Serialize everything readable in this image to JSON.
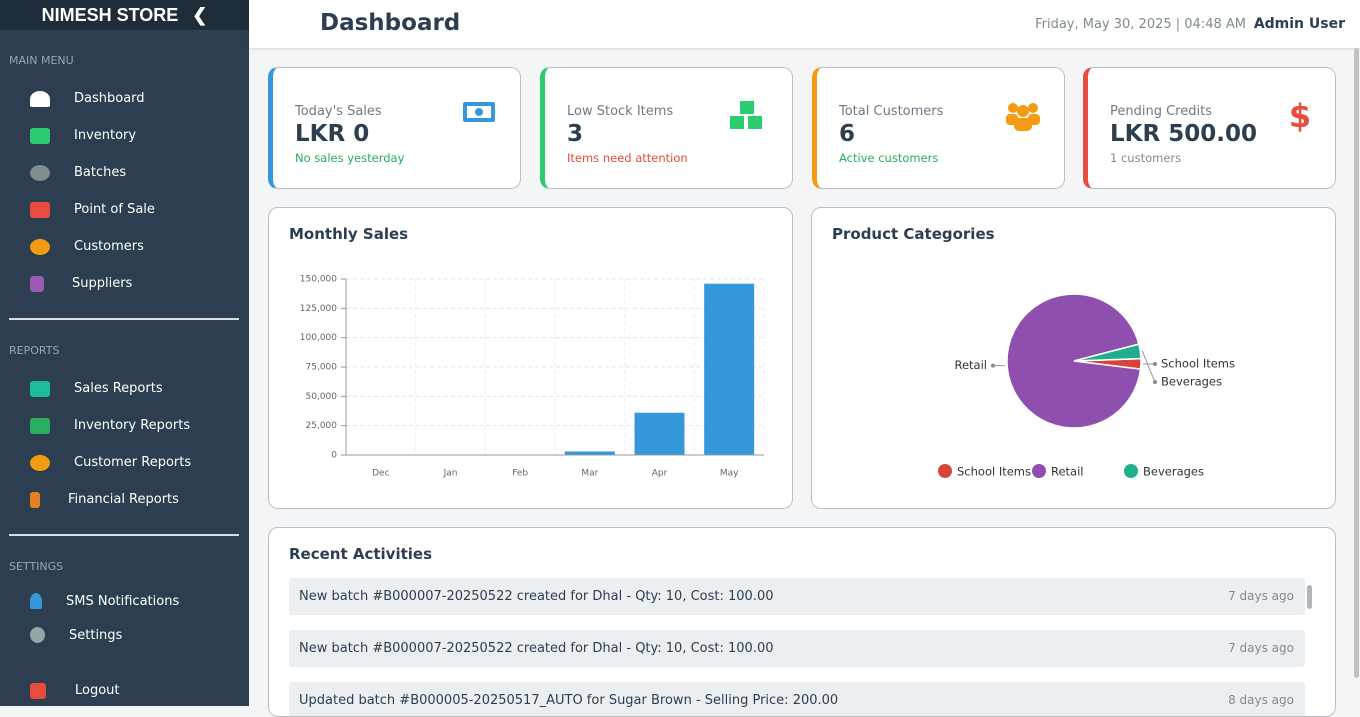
{
  "sidebar": {
    "brand": "NIMESH STORE",
    "sections": [
      {
        "title": "MAIN MENU",
        "items": [
          "Dashboard",
          "Inventory",
          "Batches",
          "Point of Sale",
          "Customers",
          "Suppliers"
        ]
      },
      {
        "title": "REPORTS",
        "items": [
          "Sales Reports",
          "Inventory Reports",
          "Customer Reports",
          "Financial Reports"
        ]
      },
      {
        "title": "SETTINGS",
        "items": [
          "SMS Notifications",
          "Settings"
        ]
      }
    ],
    "logout": "Logout"
  },
  "header": {
    "title": "Dashboard",
    "datetime": "Friday, May 30, 2025 | 04:48 AM",
    "user": "Admin User"
  },
  "cards": [
    {
      "title": "Today's Sales",
      "value": "LKR 0",
      "note": "No sales yesterday"
    },
    {
      "title": "Low Stock Items",
      "value": "3",
      "note": "Items need attention"
    },
    {
      "title": "Total Customers",
      "value": "6",
      "note": "Active customers"
    },
    {
      "title": "Pending Credits",
      "value": "LKR 500.00",
      "note": "1 customers"
    }
  ],
  "chart_data": [
    {
      "type": "bar",
      "title": "Monthly Sales",
      "categories": [
        "Dec",
        "Jan",
        "Feb",
        "Mar",
        "Apr",
        "May"
      ],
      "values": [
        0,
        0,
        0,
        3000,
        36000,
        146000
      ],
      "color": "#3498db",
      "ylim": [
        0,
        150000
      ],
      "yticks": [
        0,
        {
          "value": 25000,
          "label": "25,000"
        },
        {
          "value": 50000,
          "label": "50,000"
        },
        {
          "value": 75000,
          "label": "75,000"
        },
        {
          "value": 100000,
          "label": "100,000"
        },
        {
          "value": 125000,
          "label": "125,000"
        },
        {
          "value": 150000,
          "label": "150,000"
        }
      ],
      "grid": true
    },
    {
      "type": "pie",
      "title": "Product Categories",
      "categories": [
        "School Items",
        "Retail",
        "Beverages"
      ],
      "values": [
        2.5,
        94,
        3.5
      ],
      "colors": [
        "#d9443a",
        "#8e4fae",
        "#1fae8e"
      ],
      "legend": "bottom"
    }
  ],
  "activities": {
    "title": "Recent Activities",
    "items": [
      {
        "text": "New batch #B000007-20250522 created for Dhal - Qty: 10, Cost: 100.00",
        "time": "7 days ago"
      },
      {
        "text": "New batch #B000007-20250522 created for Dhal - Qty: 10, Cost: 100.00",
        "time": "7 days ago"
      },
      {
        "text": "Updated batch #B000005-20250517_AUTO for Sugar Brown - Selling Price: 200.00",
        "time": "8 days ago"
      }
    ]
  }
}
